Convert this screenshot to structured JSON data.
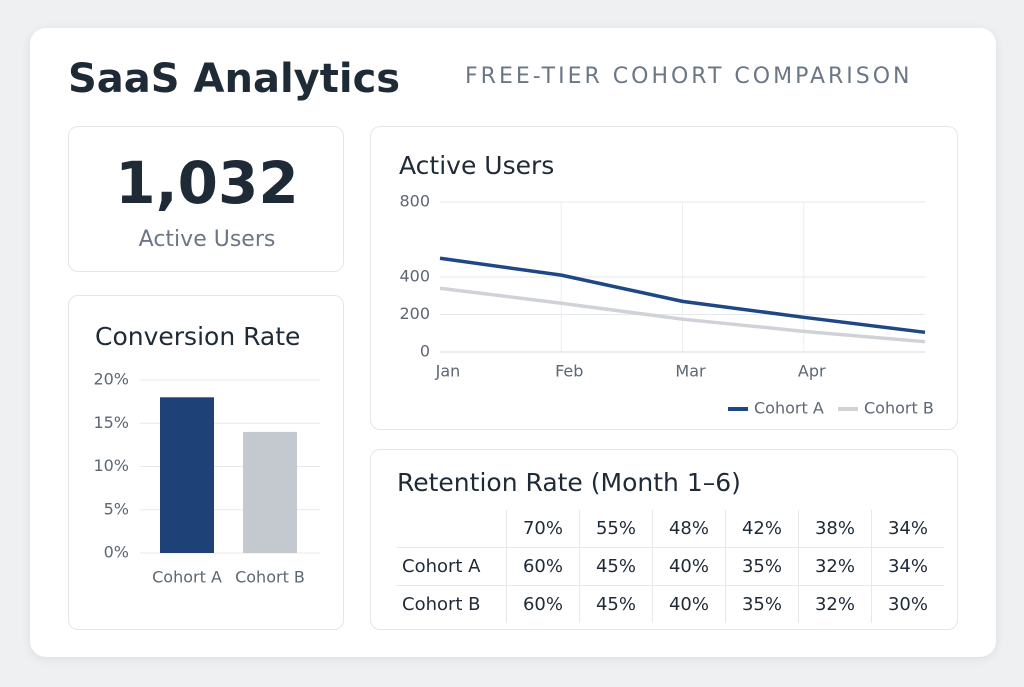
{
  "header": {
    "title": "SaaS Analytics",
    "subtitle": "FREE-TIER COHORT COMPARISON"
  },
  "kpi": {
    "value": "1,032",
    "label": "Active Users"
  },
  "chart_data": [
    {
      "type": "bar",
      "title": "Conversion Rate",
      "categories": [
        "Cohort A",
        "Cohort B"
      ],
      "values": [
        18,
        14
      ],
      "colors": [
        "#1e4177",
        "#c4c9cf"
      ],
      "ylim": [
        0,
        20
      ],
      "yticks": [
        {
          "value": 0,
          "label": "0%"
        },
        {
          "value": 5,
          "label": "5%"
        },
        {
          "value": 10,
          "label": "10%"
        },
        {
          "value": 15,
          "label": "15%"
        },
        {
          "value": 20,
          "label": "20%"
        }
      ],
      "grid": true
    },
    {
      "type": "line",
      "title": "Active Users",
      "categories": [
        "Jan",
        "Feb",
        "Mar",
        "Apr",
        null
      ],
      "series": [
        {
          "name": "Cohort A",
          "color": "#1f4785",
          "values": [
            500,
            410,
            270,
            185,
            105
          ]
        },
        {
          "name": "Cohort B",
          "color": "#cfd3d8",
          "values": [
            340,
            260,
            175,
            110,
            55
          ]
        }
      ],
      "ylim": [
        0,
        800
      ],
      "yticks": [
        0,
        200,
        400,
        800
      ],
      "grid": true,
      "legend": "bottom-right"
    }
  ],
  "table": {
    "title": "Retention Rate (Month 1–6)",
    "header": [
      "70%",
      "55%",
      "48%",
      "42%",
      "38%",
      "34%"
    ],
    "rows": [
      {
        "label": "Cohort A",
        "values": [
          "60%",
          "45%",
          "40%",
          "35%",
          "32%",
          "34%"
        ]
      },
      {
        "label": "Cohort B",
        "values": [
          "60%",
          "45%",
          "40%",
          "35%",
          "32%",
          "30%"
        ]
      }
    ]
  }
}
